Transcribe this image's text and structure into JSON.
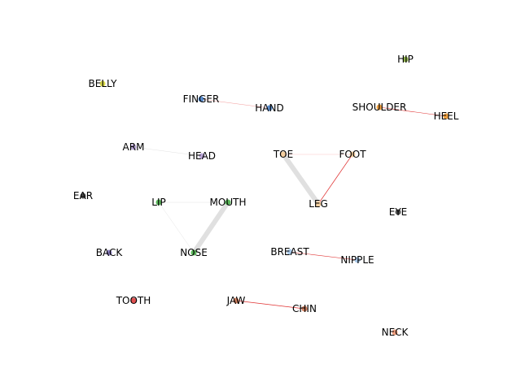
{
  "nodes": [
    {
      "id": "hip",
      "label": "HIP",
      "color": "#8db04a"
    },
    {
      "id": "belly",
      "label": "BELLY",
      "color": "#d9d94a"
    },
    {
      "id": "finger",
      "label": "FINGER",
      "color": "#5b8fd1"
    },
    {
      "id": "hand",
      "label": "HAND",
      "color": "#5b8fd1"
    },
    {
      "id": "shoulder",
      "label": "SHOULDER",
      "color": "#f0a040"
    },
    {
      "id": "heel",
      "label": "HEEL",
      "color": "#f0a040"
    },
    {
      "id": "arm",
      "label": "ARM",
      "color": "#b9a6d6"
    },
    {
      "id": "head",
      "label": "HEAD",
      "color": "#b9a6d6"
    },
    {
      "id": "toe",
      "label": "TOE",
      "color": "#f5cfa0"
    },
    {
      "id": "foot",
      "label": "FOOT",
      "color": "#f5cfa0"
    },
    {
      "id": "ear",
      "label": "EAR",
      "color": "#555555"
    },
    {
      "id": "lip",
      "label": "LIP",
      "color": "#5cb85c"
    },
    {
      "id": "mouth",
      "label": "MOUTH",
      "color": "#5cb85c"
    },
    {
      "id": "leg",
      "label": "LEG",
      "color": "#f5cfa0"
    },
    {
      "id": "eye",
      "label": "EYE",
      "color": "#555555"
    },
    {
      "id": "back",
      "label": "BACK",
      "color": "#8a7ec0"
    },
    {
      "id": "nose",
      "label": "NOSE",
      "color": "#5cb85c"
    },
    {
      "id": "breast",
      "label": "BREAST",
      "color": "#a8c8e8"
    },
    {
      "id": "nipple",
      "label": "NIPPLE",
      "color": "#a8c8e8"
    },
    {
      "id": "tooth",
      "label": "TOOTH",
      "color": "#e05050"
    },
    {
      "id": "jaw",
      "label": "JAW",
      "color": "#d08060"
    },
    {
      "id": "chin",
      "label": "CHIN",
      "color": "#d08060"
    },
    {
      "id": "neck",
      "label": "NECK",
      "color": "#f0a080"
    }
  ],
  "edges": [
    {
      "source": "finger",
      "target": "hand",
      "color": "#f08080",
      "weight": 0.4
    },
    {
      "source": "shoulder",
      "target": "heel",
      "color": "#e03030",
      "weight": 0.6
    },
    {
      "source": "arm",
      "target": "head",
      "color": "#cccccc",
      "weight": 0.3
    },
    {
      "source": "toe",
      "target": "foot",
      "color": "#f5a0a0",
      "weight": 0.3
    },
    {
      "source": "toe",
      "target": "leg",
      "color": "#e0e0e0",
      "weight": 6
    },
    {
      "source": "foot",
      "target": "leg",
      "color": "#e03030",
      "weight": 0.7
    },
    {
      "source": "lip",
      "target": "mouth",
      "color": "#dddddd",
      "weight": 0.4
    },
    {
      "source": "lip",
      "target": "nose",
      "color": "#dddddd",
      "weight": 0.4
    },
    {
      "source": "mouth",
      "target": "nose",
      "color": "#e0e0e0",
      "weight": 6
    },
    {
      "source": "breast",
      "target": "nipple",
      "color": "#e03030",
      "weight": 0.6
    },
    {
      "source": "jaw",
      "target": "chin",
      "color": "#e03030",
      "weight": 0.7
    }
  ]
}
